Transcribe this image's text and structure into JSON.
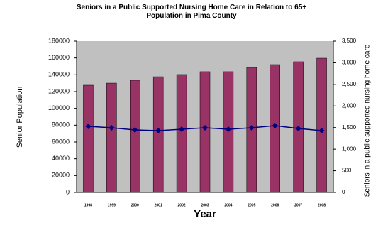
{
  "chart_data": {
    "type": "bar",
    "title": "Seniors in a Public Supported Nursing Home Care in Relation to 65+ Population in Pima County",
    "x_label": "Year",
    "y_label": "Senior Population",
    "y2_label": "Seniors in a public supported nursing home care",
    "categories": [
      "1998",
      "1999",
      "2000",
      "2001",
      "2002",
      "2003",
      "2004",
      "2005",
      "2006",
      "2007",
      "2008"
    ],
    "series": [
      {
        "type": "bar",
        "color": "#993366",
        "values": [
          127600,
          130100,
          133500,
          137700,
          140300,
          143700,
          143700,
          148700,
          152100,
          155500,
          159700
        ]
      },
      {
        "type": "line",
        "axis": "y2",
        "color": "#000080",
        "values": [
          1528,
          1495,
          1446,
          1430,
          1462,
          1495,
          1462,
          1495,
          1545,
          1479,
          1430
        ]
      }
    ],
    "ylim": [
      0,
      180000
    ],
    "yticks": [
      0,
      20000,
      40000,
      60000,
      80000,
      100000,
      120000,
      140000,
      160000,
      180000
    ],
    "y2lim": [
      0,
      3500
    ],
    "y2ticks": [
      0,
      500,
      {
        "value": 1000,
        "label": "1,000"
      },
      {
        "value": 1500,
        "label": "1,500"
      },
      {
        "value": 2000,
        "label": "2,000"
      },
      {
        "value": 2500,
        "label": "2,500"
      },
      {
        "value": 3000,
        "label": "3,000"
      },
      {
        "value": 3500,
        "label": "3,500"
      }
    ],
    "plot_background": "#c0c0c0",
    "grid": false
  }
}
